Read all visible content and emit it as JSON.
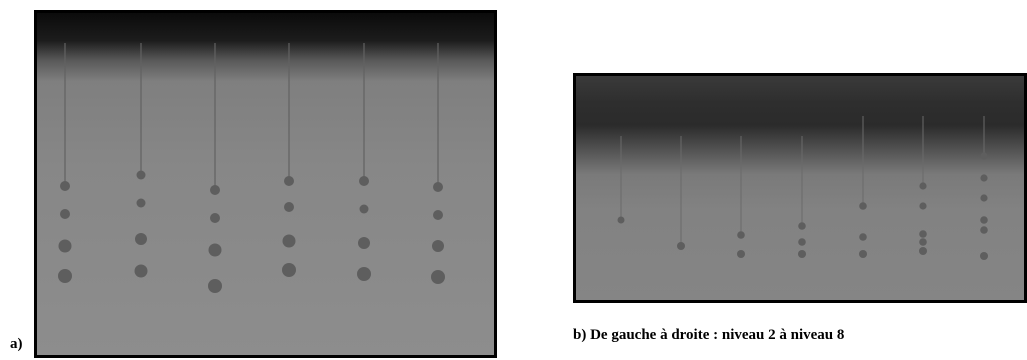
{
  "labels": {
    "panel_a": "a)",
    "caption_b": "b) De gauche à droite : niveau 2 à niveau 8"
  },
  "colors": {
    "droplet": "#5e5e5e",
    "fiber": "#606060",
    "frame": "#000000"
  }
}
